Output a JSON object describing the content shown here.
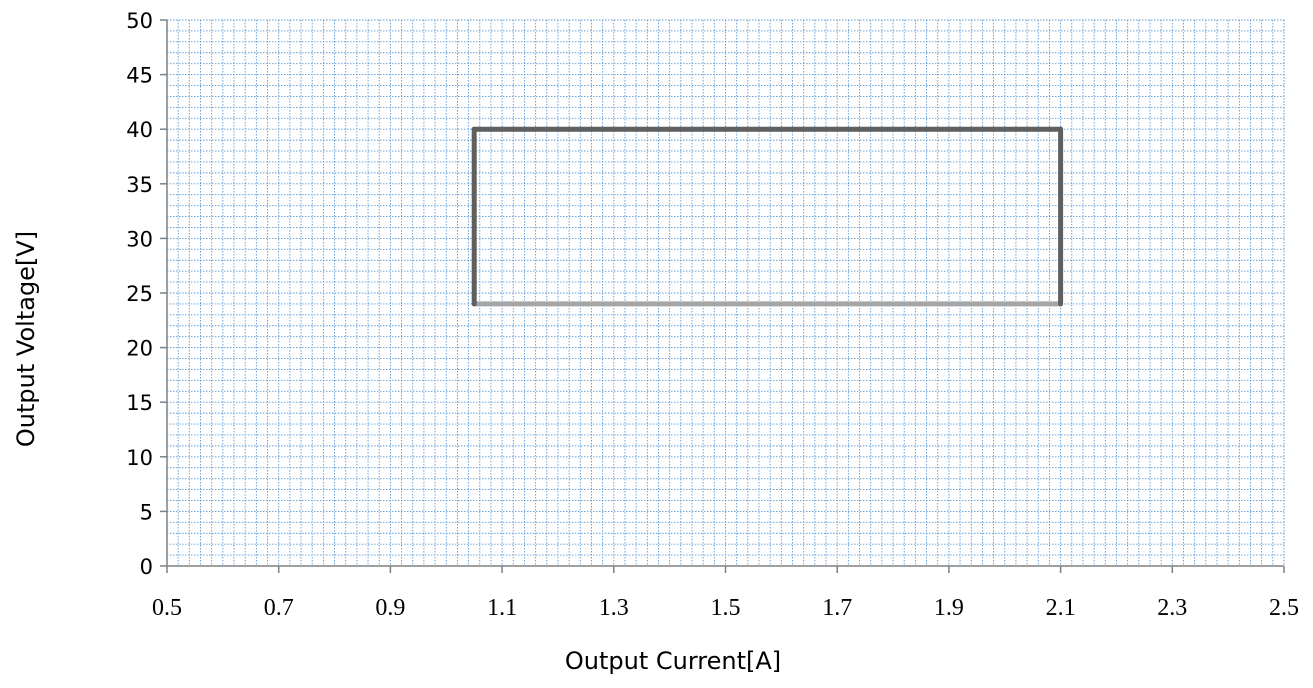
{
  "chart_data": {
    "type": "line",
    "title": "",
    "xlabel": "Output Current[A]",
    "ylabel": "Output Voltage[V]",
    "xlim": [
      0.5,
      2.5
    ],
    "ylim": [
      0,
      50
    ],
    "x_ticks": [
      "0.5",
      "0.7",
      "0.9",
      "1.1",
      "1.3",
      "1.5",
      "1.7",
      "1.9",
      "2.1",
      "2.3",
      "2.5"
    ],
    "y_ticks": [
      "0",
      "5",
      "10",
      "15",
      "20",
      "25",
      "30",
      "35",
      "40",
      "45",
      "50"
    ],
    "grid": true,
    "legend": "none",
    "series": [
      {
        "color": "#5f5f5f",
        "points": [
          [
            1.05,
            40
          ],
          [
            2.1,
            40
          ]
        ]
      },
      {
        "color": "#a6a6a6",
        "points": [
          [
            1.05,
            24
          ],
          [
            2.1,
            24
          ]
        ]
      },
      {
        "color": "#5f5f5f",
        "points": [
          [
            1.05,
            24
          ],
          [
            1.05,
            40
          ]
        ]
      },
      {
        "color": "#5f5f5f",
        "points": [
          [
            2.1,
            24
          ],
          [
            2.1,
            40
          ]
        ]
      }
    ],
    "colors": {
      "grid": "#5b9bd5",
      "axis": "#808080"
    }
  }
}
